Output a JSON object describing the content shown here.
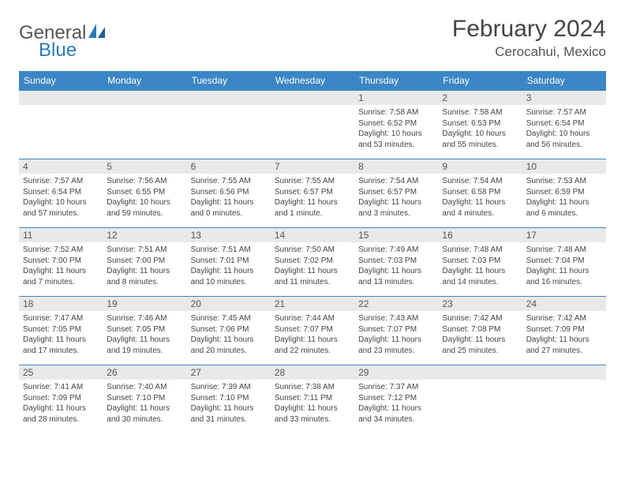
{
  "logo": {
    "text1": "General",
    "text2": "Blue"
  },
  "title": "February 2024",
  "location": "Cerocahui, Mexico",
  "colors": {
    "header_bg": "#3b86c4",
    "header_text": "#ffffff",
    "daynum_bg": "#e9e9e9",
    "border": "#3b86c4",
    "logo_blue": "#2a7ab8"
  },
  "weekdays": [
    "Sunday",
    "Monday",
    "Tuesday",
    "Wednesday",
    "Thursday",
    "Friday",
    "Saturday"
  ],
  "weeks": [
    [
      null,
      null,
      null,
      null,
      {
        "n": "1",
        "sr": "7:58 AM",
        "ss": "6:52 PM",
        "dl": "10 hours and 53 minutes."
      },
      {
        "n": "2",
        "sr": "7:58 AM",
        "ss": "6:53 PM",
        "dl": "10 hours and 55 minutes."
      },
      {
        "n": "3",
        "sr": "7:57 AM",
        "ss": "6:54 PM",
        "dl": "10 hours and 56 minutes."
      }
    ],
    [
      {
        "n": "4",
        "sr": "7:57 AM",
        "ss": "6:54 PM",
        "dl": "10 hours and 57 minutes."
      },
      {
        "n": "5",
        "sr": "7:56 AM",
        "ss": "6:55 PM",
        "dl": "10 hours and 59 minutes."
      },
      {
        "n": "6",
        "sr": "7:55 AM",
        "ss": "6:56 PM",
        "dl": "11 hours and 0 minutes."
      },
      {
        "n": "7",
        "sr": "7:55 AM",
        "ss": "6:57 PM",
        "dl": "11 hours and 1 minute."
      },
      {
        "n": "8",
        "sr": "7:54 AM",
        "ss": "6:57 PM",
        "dl": "11 hours and 3 minutes."
      },
      {
        "n": "9",
        "sr": "7:54 AM",
        "ss": "6:58 PM",
        "dl": "11 hours and 4 minutes."
      },
      {
        "n": "10",
        "sr": "7:53 AM",
        "ss": "6:59 PM",
        "dl": "11 hours and 6 minutes."
      }
    ],
    [
      {
        "n": "11",
        "sr": "7:52 AM",
        "ss": "7:00 PM",
        "dl": "11 hours and 7 minutes."
      },
      {
        "n": "12",
        "sr": "7:51 AM",
        "ss": "7:00 PM",
        "dl": "11 hours and 8 minutes."
      },
      {
        "n": "13",
        "sr": "7:51 AM",
        "ss": "7:01 PM",
        "dl": "11 hours and 10 minutes."
      },
      {
        "n": "14",
        "sr": "7:50 AM",
        "ss": "7:02 PM",
        "dl": "11 hours and 11 minutes."
      },
      {
        "n": "15",
        "sr": "7:49 AM",
        "ss": "7:03 PM",
        "dl": "11 hours and 13 minutes."
      },
      {
        "n": "16",
        "sr": "7:48 AM",
        "ss": "7:03 PM",
        "dl": "11 hours and 14 minutes."
      },
      {
        "n": "17",
        "sr": "7:48 AM",
        "ss": "7:04 PM",
        "dl": "11 hours and 16 minutes."
      }
    ],
    [
      {
        "n": "18",
        "sr": "7:47 AM",
        "ss": "7:05 PM",
        "dl": "11 hours and 17 minutes."
      },
      {
        "n": "19",
        "sr": "7:46 AM",
        "ss": "7:05 PM",
        "dl": "11 hours and 19 minutes."
      },
      {
        "n": "20",
        "sr": "7:45 AM",
        "ss": "7:06 PM",
        "dl": "11 hours and 20 minutes."
      },
      {
        "n": "21",
        "sr": "7:44 AM",
        "ss": "7:07 PM",
        "dl": "11 hours and 22 minutes."
      },
      {
        "n": "22",
        "sr": "7:43 AM",
        "ss": "7:07 PM",
        "dl": "11 hours and 23 minutes."
      },
      {
        "n": "23",
        "sr": "7:42 AM",
        "ss": "7:08 PM",
        "dl": "11 hours and 25 minutes."
      },
      {
        "n": "24",
        "sr": "7:42 AM",
        "ss": "7:09 PM",
        "dl": "11 hours and 27 minutes."
      }
    ],
    [
      {
        "n": "25",
        "sr": "7:41 AM",
        "ss": "7:09 PM",
        "dl": "11 hours and 28 minutes."
      },
      {
        "n": "26",
        "sr": "7:40 AM",
        "ss": "7:10 PM",
        "dl": "11 hours and 30 minutes."
      },
      {
        "n": "27",
        "sr": "7:39 AM",
        "ss": "7:10 PM",
        "dl": "11 hours and 31 minutes."
      },
      {
        "n": "28",
        "sr": "7:38 AM",
        "ss": "7:11 PM",
        "dl": "11 hours and 33 minutes."
      },
      {
        "n": "29",
        "sr": "7:37 AM",
        "ss": "7:12 PM",
        "dl": "11 hours and 34 minutes."
      },
      null,
      null
    ]
  ],
  "labels": {
    "sunrise": "Sunrise:",
    "sunset": "Sunset:",
    "daylight": "Daylight:"
  }
}
